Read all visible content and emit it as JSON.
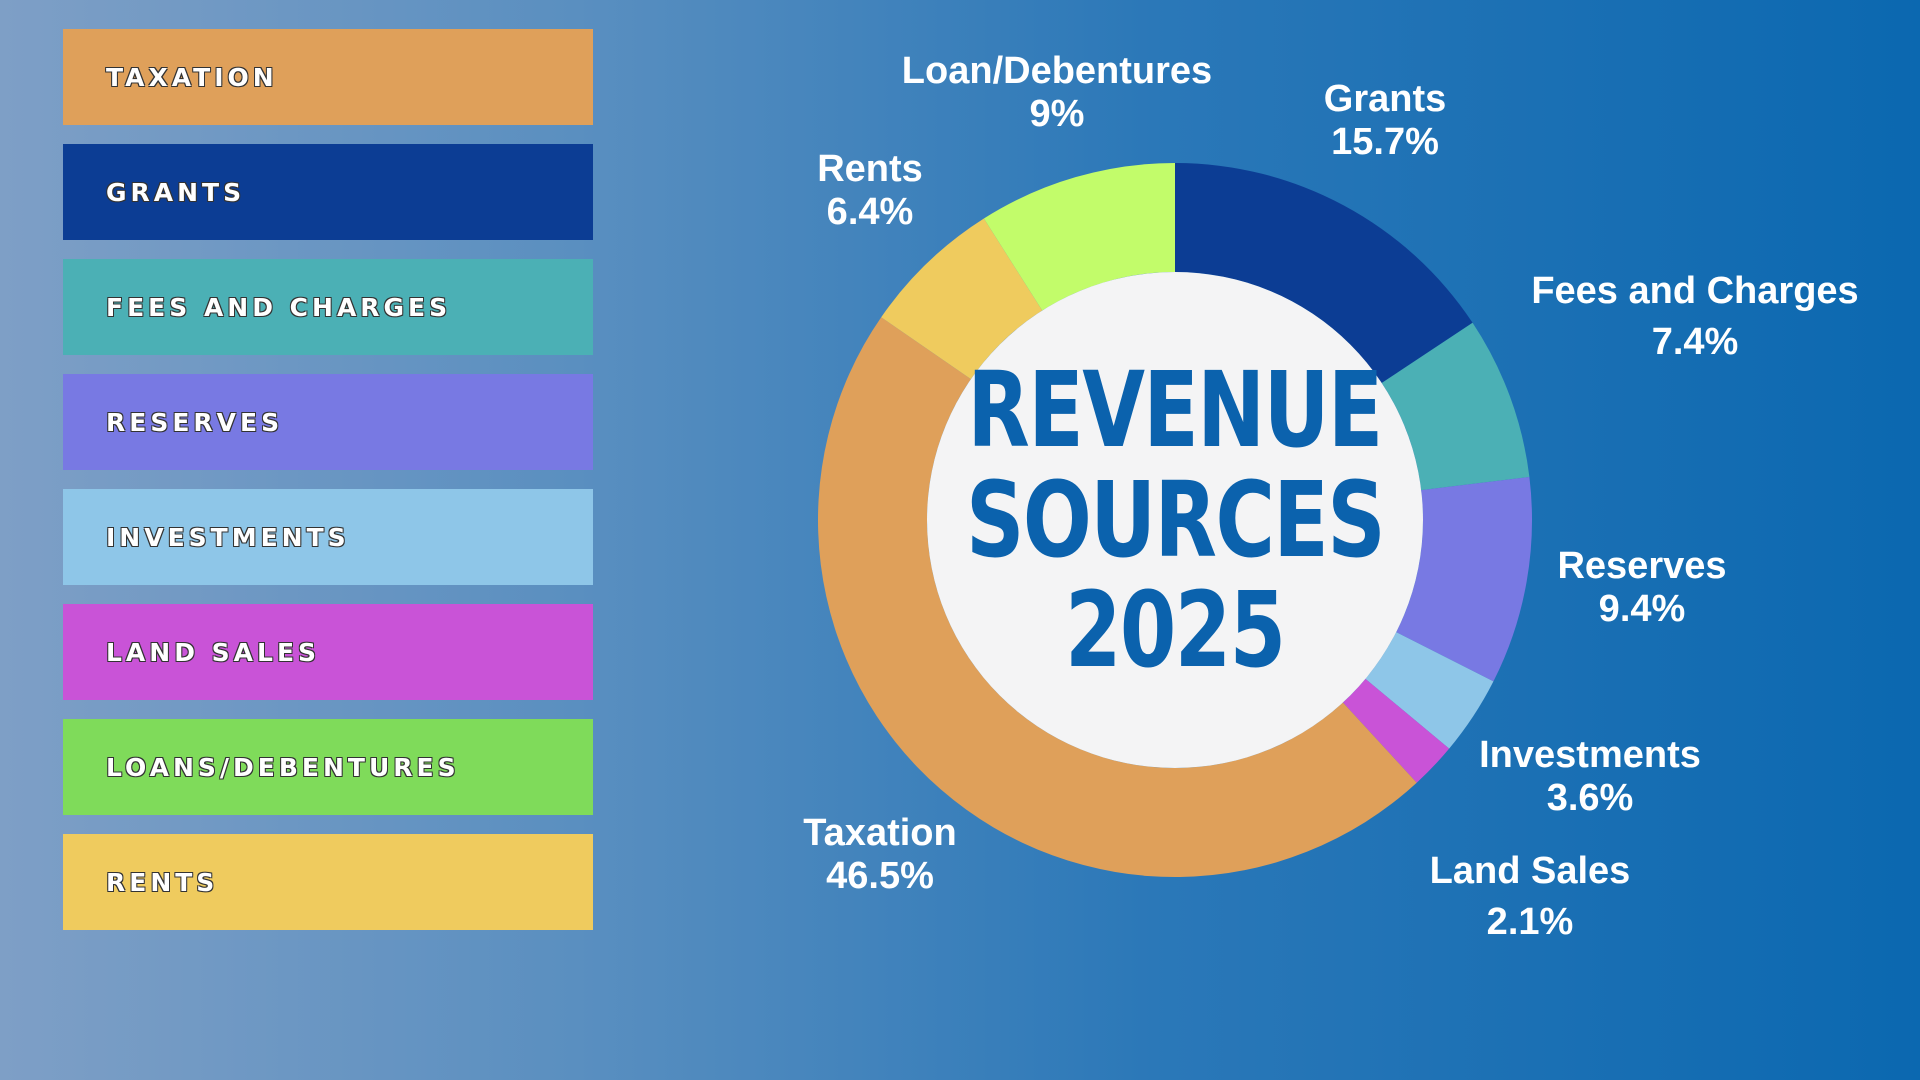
{
  "colors": {
    "Taxation": "#dfa05a",
    "Grants": "#0c3d94",
    "Fees and Charges": "#4bb0b5",
    "Reserves": "#7879e3",
    "Investments": "#8ec6e8",
    "Land Sales": "#c953d7",
    "Loans/Debentures": "#7fdb5a",
    "Loan/Debentures ring": "#c2fc6a",
    "Rents": "#efcb5e",
    "center": "#f4f4f5"
  },
  "legend": [
    {
      "label": "TAXATION",
      "color": "#dfa05a"
    },
    {
      "label": "GRANTS",
      "color": "#0c3d94"
    },
    {
      "label": "FEES AND CHARGES",
      "color": "#4bb0b5"
    },
    {
      "label": "RESERVES",
      "color": "#7879e3"
    },
    {
      "label": "INVESTMENTS",
      "color": "#8ec6e8"
    },
    {
      "label": "LAND SALES",
      "color": "#c953d7"
    },
    {
      "label": "LOANS/DEBENTURES",
      "color": "#7fdb5a"
    },
    {
      "label": "RENTS",
      "color": "#efcb5e"
    }
  ],
  "chart_data": {
    "type": "pie",
    "donut": true,
    "title_lines": [
      "REVENUE",
      "SOURCES",
      "2025"
    ],
    "slices": [
      {
        "name": "Grants",
        "value": 15.7,
        "label": "15.7%",
        "color": "#0c3d94"
      },
      {
        "name": "Fees and Charges",
        "value": 7.4,
        "label": "7.4%",
        "color": "#4bb0b5"
      },
      {
        "name": "Reserves",
        "value": 9.4,
        "label": "9.4%",
        "color": "#7879e3"
      },
      {
        "name": "Investments",
        "value": 3.6,
        "label": "3.6%",
        "color": "#8ec6e8"
      },
      {
        "name": "Land Sales",
        "value": 2.1,
        "label": "2.1%",
        "color": "#c953d7"
      },
      {
        "name": "Taxation",
        "value": 46.5,
        "label": "46.5%",
        "color": "#dfa05a"
      },
      {
        "name": "Rents",
        "value": 6.4,
        "label": "6.4%",
        "color": "#efcb5e"
      },
      {
        "name": "Loan/Debentures",
        "value": 9,
        "label": "9%",
        "color": "#c2fc6a"
      }
    ]
  }
}
